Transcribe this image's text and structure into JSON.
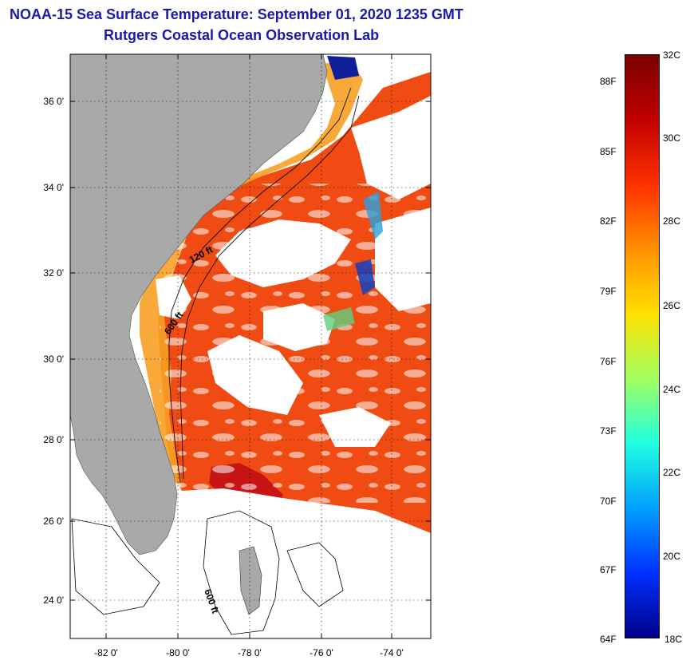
{
  "header": {
    "title": "NOAA-15 Sea Surface Temperature:  September 01, 2020 1235 GMT",
    "subtitle": "Rutgers Coastal Ocean Observation Lab"
  },
  "map": {
    "lat_labels": [
      "36 0'",
      "34 0'",
      "32 0'",
      "30 0'",
      "28 0'",
      "26 0'",
      "24 0'"
    ],
    "lon_labels": [
      "-82 0'",
      "-80 0'",
      "-78 0'",
      "-76 0'",
      "-74 0'"
    ],
    "isobaths": [
      "120 ft",
      "600 ft",
      "600 ft"
    ]
  },
  "colorbar": {
    "celsius": [
      "32C",
      "30C",
      "28C",
      "26C",
      "24C",
      "22C",
      "20C",
      "18C"
    ],
    "fahrenheit": [
      "88F",
      "85F",
      "82F",
      "79F",
      "76F",
      "73F",
      "70F",
      "67F",
      "64F"
    ],
    "colors": [
      "#7a0000",
      "#c00000",
      "#ff3000",
      "#ff9000",
      "#ffe000",
      "#a0ff60",
      "#20ffe0",
      "#00a0ff",
      "#0030ff",
      "#00008c"
    ]
  },
  "colors": {
    "title": "#1a1aa8",
    "land": "#a9a9a9",
    "warm": "#f04a10",
    "hot": "#c81010",
    "coastal": "#f8a020",
    "no_data": "#ffffff"
  }
}
